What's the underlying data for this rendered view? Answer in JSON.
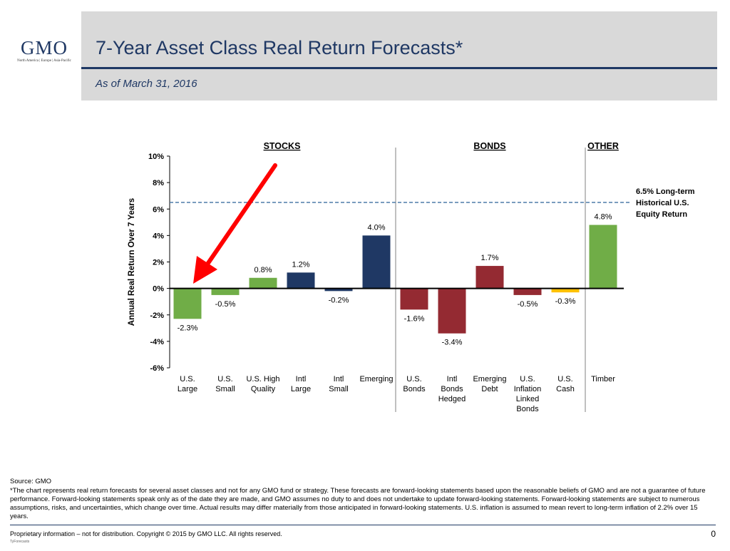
{
  "logo": {
    "name": "GMO",
    "tagline": "North America | Europe | Asia-Pacific"
  },
  "header": {
    "title": "7-Year Asset Class Real Return Forecasts*",
    "subtitle": "As of March 31, 2016"
  },
  "colors": {
    "navy": "#1f3864",
    "green": "#70ad47",
    "red": "#942a32",
    "yellow": "#ffc000",
    "arrow": "#ff0000",
    "dash": "#4f7ba8"
  },
  "chart_data": {
    "type": "bar",
    "ylabel": "Annual Real Return Over 7 Years",
    "ylim": [
      -6,
      10
    ],
    "yticks": [
      -6,
      -4,
      -2,
      0,
      2,
      4,
      6,
      8,
      10
    ],
    "yticklabels": [
      "-6%",
      "-4%",
      "-2%",
      "0%",
      "2%",
      "4%",
      "6%",
      "8%",
      "10%"
    ],
    "groups": [
      {
        "name": "STOCKS",
        "start": 0,
        "end": 5
      },
      {
        "name": "BONDS",
        "start": 6,
        "end": 10
      },
      {
        "name": "OTHER",
        "start": 11,
        "end": 11
      }
    ],
    "categories": [
      [
        "U.S.",
        "Large"
      ],
      [
        "U.S.",
        "Small"
      ],
      [
        "U.S. High",
        "Quality"
      ],
      [
        "Intl",
        "Large"
      ],
      [
        "Intl",
        "Small"
      ],
      [
        "Emerging"
      ],
      [
        "U.S.",
        "Bonds"
      ],
      [
        "Intl",
        "Bonds",
        "Hedged"
      ],
      [
        "Emerging",
        "Debt"
      ],
      [
        "U.S.",
        "Inflation",
        "Linked",
        "Bonds"
      ],
      [
        "U.S.",
        "Cash"
      ],
      [
        "Timber"
      ]
    ],
    "values": [
      -2.3,
      -0.5,
      0.8,
      1.2,
      -0.2,
      4.0,
      -1.6,
      -3.4,
      1.7,
      -0.5,
      -0.3,
      4.8
    ],
    "value_labels": [
      "-2.3%",
      "-0.5%",
      "0.8%",
      "1.2%",
      "-0.2%",
      "4.0%",
      "-1.6%",
      "-3.4%",
      "1.7%",
      "-0.5%",
      "-0.3%",
      "4.8%"
    ],
    "bar_colors": [
      "#70ad47",
      "#70ad47",
      "#70ad47",
      "#1f3864",
      "#1f3864",
      "#1f3864",
      "#942a32",
      "#942a32",
      "#942a32",
      "#942a32",
      "#ffc000",
      "#70ad47"
    ],
    "reference_line": {
      "value": 6.5,
      "label": [
        "6.5% Long-term",
        "Historical U.S.",
        "Equity Return"
      ]
    }
  },
  "footer": {
    "source": "Source: GMO",
    "note": "*The chart represents real return forecasts for several asset classes and not for any GMO fund or strategy. These forecasts are forward-looking statements based upon the reasonable beliefs of GMO and are not a guarantee of future performance. Forward-looking statements speak only as of the date they are made, and GMO assumes no duty to and does not undertake to update forward-looking statements. Forward-looking statements are subject to numerous assumptions, risks, and uncertainties, which change over time. Actual results may differ materially from those anticipated in forward-looking statements. U.S. inflation is assumed to mean revert to long-term inflation of 2.2% over 15 years.",
    "copyright": "Proprietary information – not for distribution. Copyright © 2015 by GMO LLC. All rights reserved.",
    "tiny": "TyForecasts",
    "page": "0"
  }
}
